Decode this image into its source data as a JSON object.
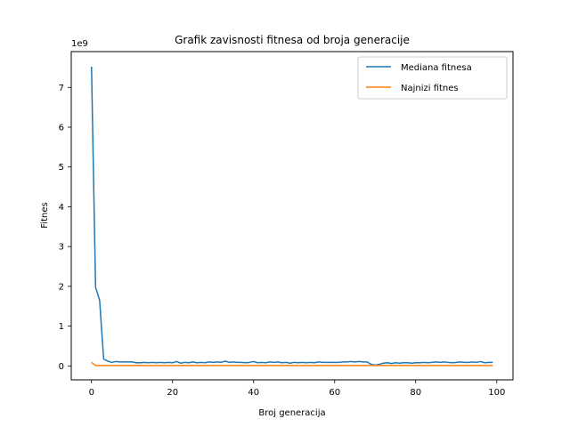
{
  "chart_data": {
    "type": "line",
    "title": "Grafik zavisnosti fitnesa od broja generacije",
    "xlabel": "Broj generacija",
    "ylabel": "Fitnes",
    "y_offset_text": "1e9",
    "xlim": [
      -5,
      104
    ],
    "ylim": [
      -0.35,
      7.9
    ],
    "x_ticks": [
      0,
      20,
      40,
      60,
      80,
      100
    ],
    "y_ticks": [
      0,
      1,
      2,
      3,
      4,
      5,
      6,
      7
    ],
    "legend_position": "top-right",
    "grid": false,
    "colors": {
      "mediana": "#1f77b4",
      "najnizi": "#ff7f0e"
    },
    "series": [
      {
        "name": "Mediana fitnesa",
        "color": "#1f77b4",
        "x": [
          0,
          1,
          2,
          3,
          4,
          5,
          6,
          7,
          8,
          9,
          10,
          11,
          12,
          13,
          14,
          15,
          16,
          17,
          18,
          19,
          20,
          21,
          22,
          23,
          24,
          25,
          26,
          27,
          28,
          29,
          30,
          31,
          32,
          33,
          34,
          35,
          36,
          37,
          38,
          39,
          40,
          41,
          42,
          43,
          44,
          45,
          46,
          47,
          48,
          49,
          50,
          51,
          52,
          53,
          54,
          55,
          56,
          57,
          58,
          59,
          60,
          61,
          62,
          63,
          64,
          65,
          66,
          67,
          68,
          69,
          70,
          71,
          72,
          73,
          74,
          75,
          76,
          77,
          78,
          79,
          80,
          81,
          82,
          83,
          84,
          85,
          86,
          87,
          88,
          89,
          90,
          91,
          92,
          93,
          94,
          95,
          96,
          97,
          98,
          99
        ],
        "values": [
          7.52,
          1.98,
          1.65,
          0.17,
          0.12,
          0.09,
          0.11,
          0.1,
          0.1,
          0.1,
          0.1,
          0.08,
          0.08,
          0.09,
          0.08,
          0.09,
          0.08,
          0.09,
          0.08,
          0.09,
          0.08,
          0.11,
          0.07,
          0.09,
          0.08,
          0.1,
          0.08,
          0.09,
          0.08,
          0.1,
          0.09,
          0.1,
          0.09,
          0.12,
          0.09,
          0.1,
          0.09,
          0.09,
          0.08,
          0.09,
          0.11,
          0.08,
          0.09,
          0.08,
          0.1,
          0.09,
          0.1,
          0.08,
          0.09,
          0.07,
          0.09,
          0.08,
          0.09,
          0.08,
          0.09,
          0.08,
          0.1,
          0.09,
          0.09,
          0.09,
          0.09,
          0.09,
          0.1,
          0.1,
          0.11,
          0.1,
          0.11,
          0.1,
          0.1,
          0.04,
          0.02,
          0.04,
          0.07,
          0.08,
          0.06,
          0.08,
          0.07,
          0.08,
          0.08,
          0.07,
          0.08,
          0.08,
          0.09,
          0.08,
          0.09,
          0.1,
          0.09,
          0.1,
          0.09,
          0.08,
          0.09,
          0.1,
          0.09,
          0.09,
          0.1,
          0.09,
          0.11,
          0.08,
          0.09,
          0.09
        ]
      },
      {
        "name": "Najnizi fitnes",
        "color": "#ff7f0e",
        "x": [
          0,
          1,
          2,
          3,
          4,
          5,
          6,
          7,
          8,
          9,
          10,
          11,
          12,
          13,
          14,
          15,
          16,
          17,
          18,
          19,
          20,
          21,
          22,
          23,
          24,
          25,
          26,
          27,
          28,
          29,
          30,
          31,
          32,
          33,
          34,
          35,
          36,
          37,
          38,
          39,
          40,
          41,
          42,
          43,
          44,
          45,
          46,
          47,
          48,
          49,
          50,
          51,
          52,
          53,
          54,
          55,
          56,
          57,
          58,
          59,
          60,
          61,
          62,
          63,
          64,
          65,
          66,
          67,
          68,
          69,
          70,
          71,
          72,
          73,
          74,
          75,
          76,
          77,
          78,
          79,
          80,
          81,
          82,
          83,
          84,
          85,
          86,
          87,
          88,
          89,
          90,
          91,
          92,
          93,
          94,
          95,
          96,
          97,
          98,
          99
        ],
        "values": [
          0.09,
          0.01,
          0.01,
          0.01,
          0.01,
          0.01,
          0.01,
          0.01,
          0.01,
          0.01,
          0.01,
          0.01,
          0.01,
          0.01,
          0.01,
          0.01,
          0.01,
          0.01,
          0.01,
          0.01,
          0.01,
          0.01,
          0.01,
          0.01,
          0.01,
          0.01,
          0.01,
          0.01,
          0.01,
          0.01,
          0.01,
          0.01,
          0.01,
          0.01,
          0.01,
          0.01,
          0.01,
          0.01,
          0.01,
          0.01,
          0.01,
          0.01,
          0.01,
          0.01,
          0.01,
          0.01,
          0.01,
          0.01,
          0.01,
          0.01,
          0.01,
          0.01,
          0.01,
          0.01,
          0.01,
          0.01,
          0.01,
          0.01,
          0.01,
          0.01,
          0.01,
          0.01,
          0.01,
          0.01,
          0.01,
          0.01,
          0.01,
          0.01,
          0.01,
          0.01,
          0.01,
          0.01,
          0.01,
          0.01,
          0.01,
          0.01,
          0.01,
          0.01,
          0.01,
          0.01,
          0.01,
          0.01,
          0.01,
          0.01,
          0.01,
          0.01,
          0.01,
          0.01,
          0.01,
          0.01,
          0.01,
          0.01,
          0.01,
          0.01,
          0.01,
          0.01,
          0.01,
          0.01,
          0.01,
          0.01
        ]
      }
    ]
  }
}
